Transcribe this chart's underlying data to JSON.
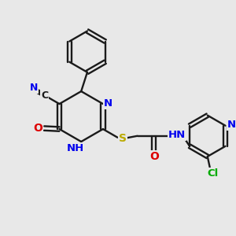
{
  "bg_color": "#e8e8e8",
  "bond_color": "#1a1a1a",
  "colors": {
    "C": "#1a1a1a",
    "N": "#0000ee",
    "O": "#dd0000",
    "S": "#bbaa00",
    "Cl": "#00aa00",
    "H": "#666666"
  },
  "figsize": [
    3.0,
    3.0
  ],
  "dpi": 100,
  "bond_lw": 1.7,
  "dbl_sep": 2.8,
  "font_size": 9.5
}
